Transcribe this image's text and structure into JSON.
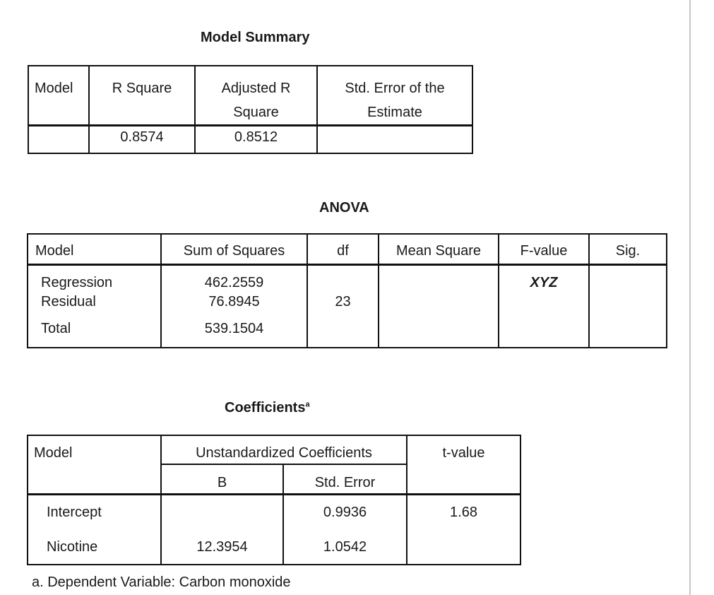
{
  "model_summary": {
    "title": "Model Summary",
    "headers": {
      "model": "Model",
      "r_square": "R Square",
      "adj_r_square_1": "Adjusted R",
      "adj_r_square_2": "Square",
      "std_error_1": "Std. Error of the",
      "std_error_2": "Estimate"
    },
    "row": {
      "model": "",
      "r_square": "0.8574",
      "adj_r_square": "0.8512",
      "std_error": ""
    }
  },
  "anova": {
    "title": "ANOVA",
    "headers": {
      "model": "Model",
      "sum_of_squares": "Sum of Squares",
      "df": "df",
      "mean_square": "Mean Square",
      "f_value": "F-value",
      "sig": "Sig."
    },
    "rows": [
      {
        "model": "Regression",
        "sum_of_squares": "462.2559",
        "df": "",
        "mean_square": "",
        "f_value": "XYZ",
        "sig": ""
      },
      {
        "model": "Residual",
        "sum_of_squares": "76.8945",
        "df": "23",
        "mean_square": "",
        "f_value": "",
        "sig": ""
      },
      {
        "model": "Total",
        "sum_of_squares": "539.1504",
        "df": "",
        "mean_square": "",
        "f_value": "",
        "sig": ""
      }
    ]
  },
  "coefficients": {
    "title": "Coefficients",
    "title_superscript": "a",
    "headers": {
      "model": "Model",
      "unstandardized": "Unstandardized Coefficients",
      "b": "B",
      "std_error": "Std. Error",
      "t_value": "t-value"
    },
    "rows": [
      {
        "model": "Intercept",
        "b": "",
        "std_error": "0.9936",
        "t_value": "1.68"
      },
      {
        "model": "Nicotine",
        "b": "12.3954",
        "std_error": "1.0542",
        "t_value": ""
      }
    ],
    "footnote": "a. Dependent Variable: Carbon monoxide"
  }
}
